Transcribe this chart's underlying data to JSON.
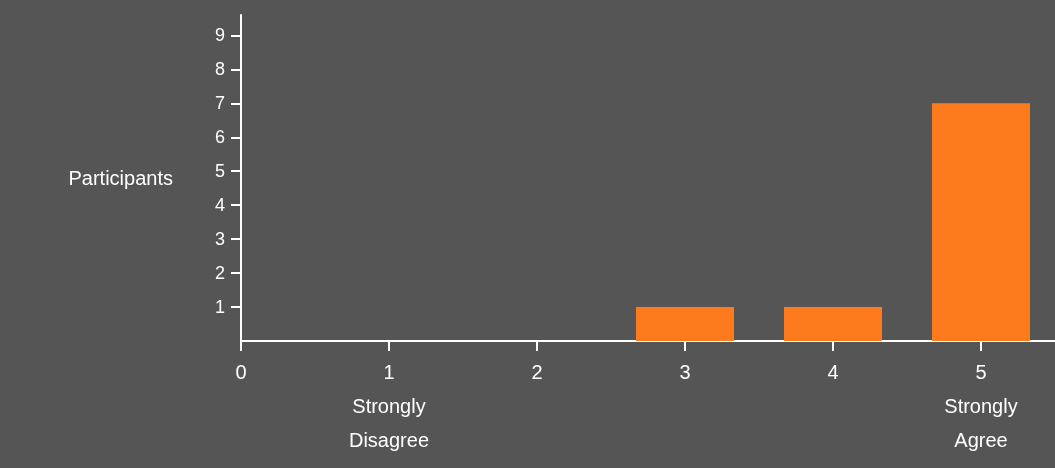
{
  "chart_data": {
    "type": "bar",
    "ylabel": "Participants",
    "x": [
      3,
      4,
      5
    ],
    "values": [
      1,
      1,
      7
    ],
    "color": "#fd7b1c",
    "xlim": [
      0,
      5.5
    ],
    "xticks": [
      0,
      {
        "value": 1,
        "label": "1\nStrongly\nDisagree"
      },
      2,
      3,
      4,
      {
        "value": 5,
        "label": "5\nStrongly\nAgree"
      }
    ],
    "ylim": [
      0,
      9.6
    ],
    "yticks": [
      1,
      2,
      3,
      4,
      5,
      6,
      7,
      8,
      9
    ],
    "grid": false
  }
}
